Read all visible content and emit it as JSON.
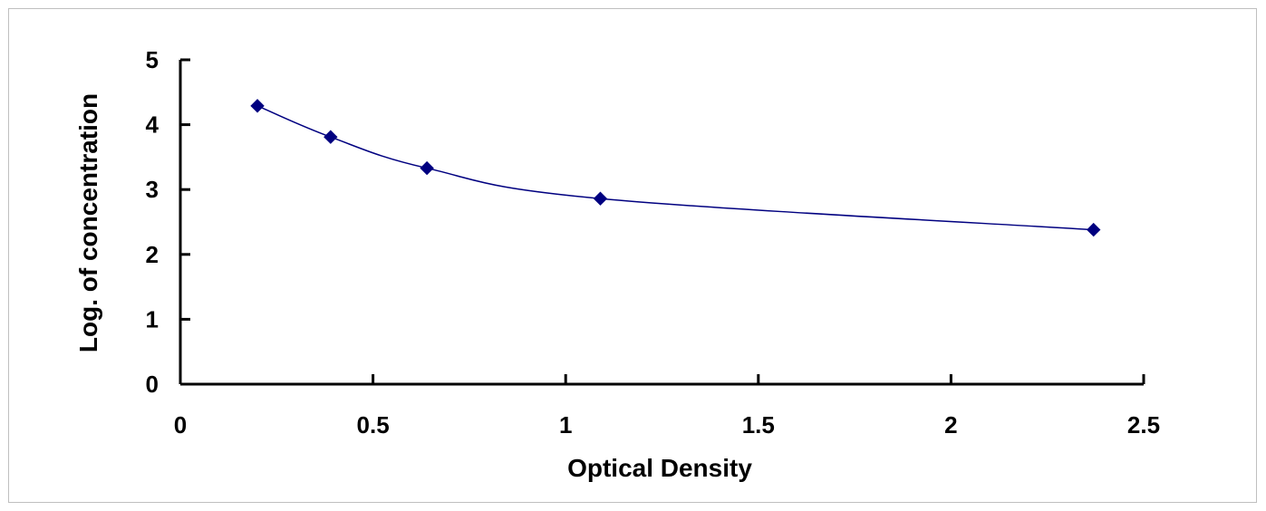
{
  "chart_data": {
    "type": "scatter",
    "title": "",
    "xlabel": "Optical Density",
    "ylabel": "Log. of concentration",
    "xlim": [
      0,
      2.5
    ],
    "ylim": [
      0,
      5
    ],
    "x_ticks": [
      "0",
      "0.5",
      "1",
      "1.5",
      "2",
      "2.5"
    ],
    "y_ticks": [
      "0",
      "1",
      "2",
      "3",
      "4",
      "5"
    ],
    "grid": false,
    "legend": "none",
    "series": [
      {
        "marker": "diamond",
        "color": "#000080",
        "line": "smooth",
        "x": [
          0.2,
          0.39,
          0.64,
          1.09,
          2.37
        ],
        "y": [
          4.29,
          3.81,
          3.33,
          2.86,
          2.38
        ]
      }
    ]
  }
}
